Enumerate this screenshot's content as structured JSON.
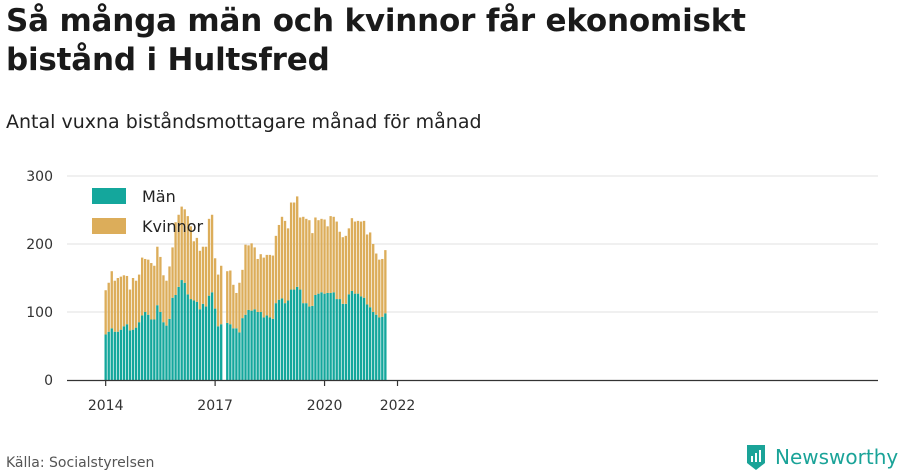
{
  "header": {
    "title": "Så många män och kvinnor får ekonomiskt bistånd i Hultsfred",
    "subtitle": "Antal vuxna biståndsmottagare månad för månad"
  },
  "footer": {
    "source": "Källa: Socialstyrelsen",
    "brand": "Newsworthy",
    "brand_icon": "newsworthy-logo-icon"
  },
  "colors": {
    "man": "#14a79c",
    "kvinnor": "#dcad5a",
    "grid": "#e2e2e2",
    "axis": "#333333",
    "brand": "#1aa398"
  },
  "chart_data": {
    "type": "bar",
    "stacked": true,
    "x_start": "2014-01",
    "x_tick_labels": [
      "2014",
      "2017",
      "2020",
      "2022"
    ],
    "y_tick_labels": [
      "0",
      "100",
      "200",
      "300"
    ],
    "ylim": [
      0,
      300
    ],
    "grid": true,
    "legend": "top-left",
    "series": [
      {
        "name": "Män",
        "values": [
          67,
          71,
          76,
          71,
          71,
          74,
          79,
          82,
          73,
          74,
          77,
          85,
          95,
          100,
          96,
          89,
          89,
          110,
          100,
          85,
          80,
          90,
          121,
          125,
          137,
          147,
          143,
          126,
          119,
          117,
          115,
          104,
          112,
          108,
          124,
          129,
          105,
          79,
          82,
          null,
          84,
          82,
          76,
          76,
          70,
          91,
          96,
          103,
          102,
          104,
          100,
          100,
          92,
          95,
          92,
          90,
          113,
          118,
          120,
          113,
          117,
          133,
          133,
          137,
          133,
          113,
          113,
          108,
          109,
          125,
          127,
          129,
          127,
          128,
          128,
          129,
          119,
          119,
          112,
          112,
          126,
          131,
          127,
          127,
          123,
          121,
          111,
          107,
          100,
          96,
          92,
          93,
          98
        ]
      },
      {
        "name": "Kvinnor",
        "values": [
          65,
          72,
          84,
          75,
          79,
          78,
          75,
          71,
          60,
          76,
          69,
          70,
          85,
          78,
          81,
          83,
          79,
          86,
          81,
          69,
          66,
          77,
          74,
          107,
          106,
          108,
          108,
          115,
          107,
          87,
          94,
          86,
          84,
          88,
          113,
          114,
          74,
          76,
          86,
          null,
          76,
          79,
          64,
          52,
          73,
          71,
          103,
          95,
          99,
          91,
          78,
          85,
          88,
          89,
          92,
          93,
          99,
          110,
          120,
          121,
          106,
          128,
          128,
          133,
          106,
          127,
          124,
          127,
          107,
          114,
          108,
          108,
          109,
          98,
          113,
          111,
          114,
          99,
          98,
          100,
          97,
          107,
          106,
          107,
          110,
          113,
          103,
          110,
          100,
          90,
          85,
          85,
          93
        ]
      }
    ]
  }
}
